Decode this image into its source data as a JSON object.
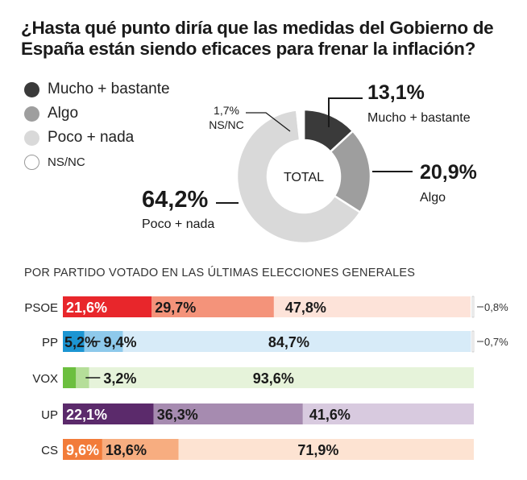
{
  "title": "¿Hasta qué punto diría que las medidas del Gobierno de España están siendo eficaces para frenar la inflación?",
  "subtitle": "POR PARTIDO VOTADO EN LAS ÚLTIMAS ELECCIONES GENERALES",
  "legend": [
    {
      "label": "Mucho + bastante",
      "color": "#3a3a3a"
    },
    {
      "label": "Algo",
      "color": "#9e9e9e"
    },
    {
      "label": "Poco + nada",
      "color": "#d9d9d9"
    },
    {
      "label": "NS/NC",
      "color": "#ffffff"
    }
  ],
  "chart_data": [
    {
      "type": "pie",
      "center_label": "TOTAL",
      "slices": [
        {
          "name": "Mucho + bastante",
          "value": 13.1,
          "label": "13,1%",
          "color": "#3a3a3a"
        },
        {
          "name": "Algo",
          "value": 20.9,
          "label": "20,9%",
          "color": "#9e9e9e"
        },
        {
          "name": "Poco + nada",
          "value": 64.2,
          "label": "64,2%",
          "color": "#d9d9d9"
        },
        {
          "name": "NS/NC",
          "value": 1.7,
          "label": "1,7%",
          "color": "#ffffff"
        }
      ]
    },
    {
      "type": "bar",
      "stacked": true,
      "orientation": "horizontal",
      "categories": [
        "PSOE",
        "PP",
        "VOX",
        "UP",
        "CS"
      ],
      "series": [
        {
          "name": "Mucho + bastante",
          "values": [
            21.6,
            5.2,
            3.2,
            22.1,
            9.6
          ],
          "labels": [
            "21,6%",
            "5,2%",
            "3,2%",
            "22,1%",
            "9,6%"
          ]
        },
        {
          "name": "Algo",
          "values": [
            29.7,
            9.4,
            3.2,
            36.3,
            18.6
          ],
          "labels": [
            "29,7%",
            "9,4%",
            "",
            "36,3%",
            "18,6%"
          ]
        },
        {
          "name": "Poco + nada",
          "values": [
            47.8,
            84.7,
            93.6,
            41.6,
            71.9
          ],
          "labels": [
            "47,8%",
            "84,7%",
            "93,6%",
            "41,6%",
            "71,9%"
          ]
        },
        {
          "name": "NS/NC",
          "values": [
            0.8,
            0.7,
            0,
            0,
            0
          ],
          "labels": [
            "0,8%",
            "0,7%",
            "",
            "",
            ""
          ]
        }
      ],
      "party_colors": [
        [
          "#e8262b",
          "#f4937a",
          "#fde3d9"
        ],
        [
          "#1c95d2",
          "#8ec9eb",
          "#d7ebf8"
        ],
        [
          "#6cbf3f",
          "#b5de99",
          "#e6f3da"
        ],
        [
          "#5b2a6b",
          "#a68bb0",
          "#d8cadf"
        ],
        [
          "#f27c3a",
          "#f7ad80",
          "#fde3d2"
        ]
      ]
    }
  ]
}
